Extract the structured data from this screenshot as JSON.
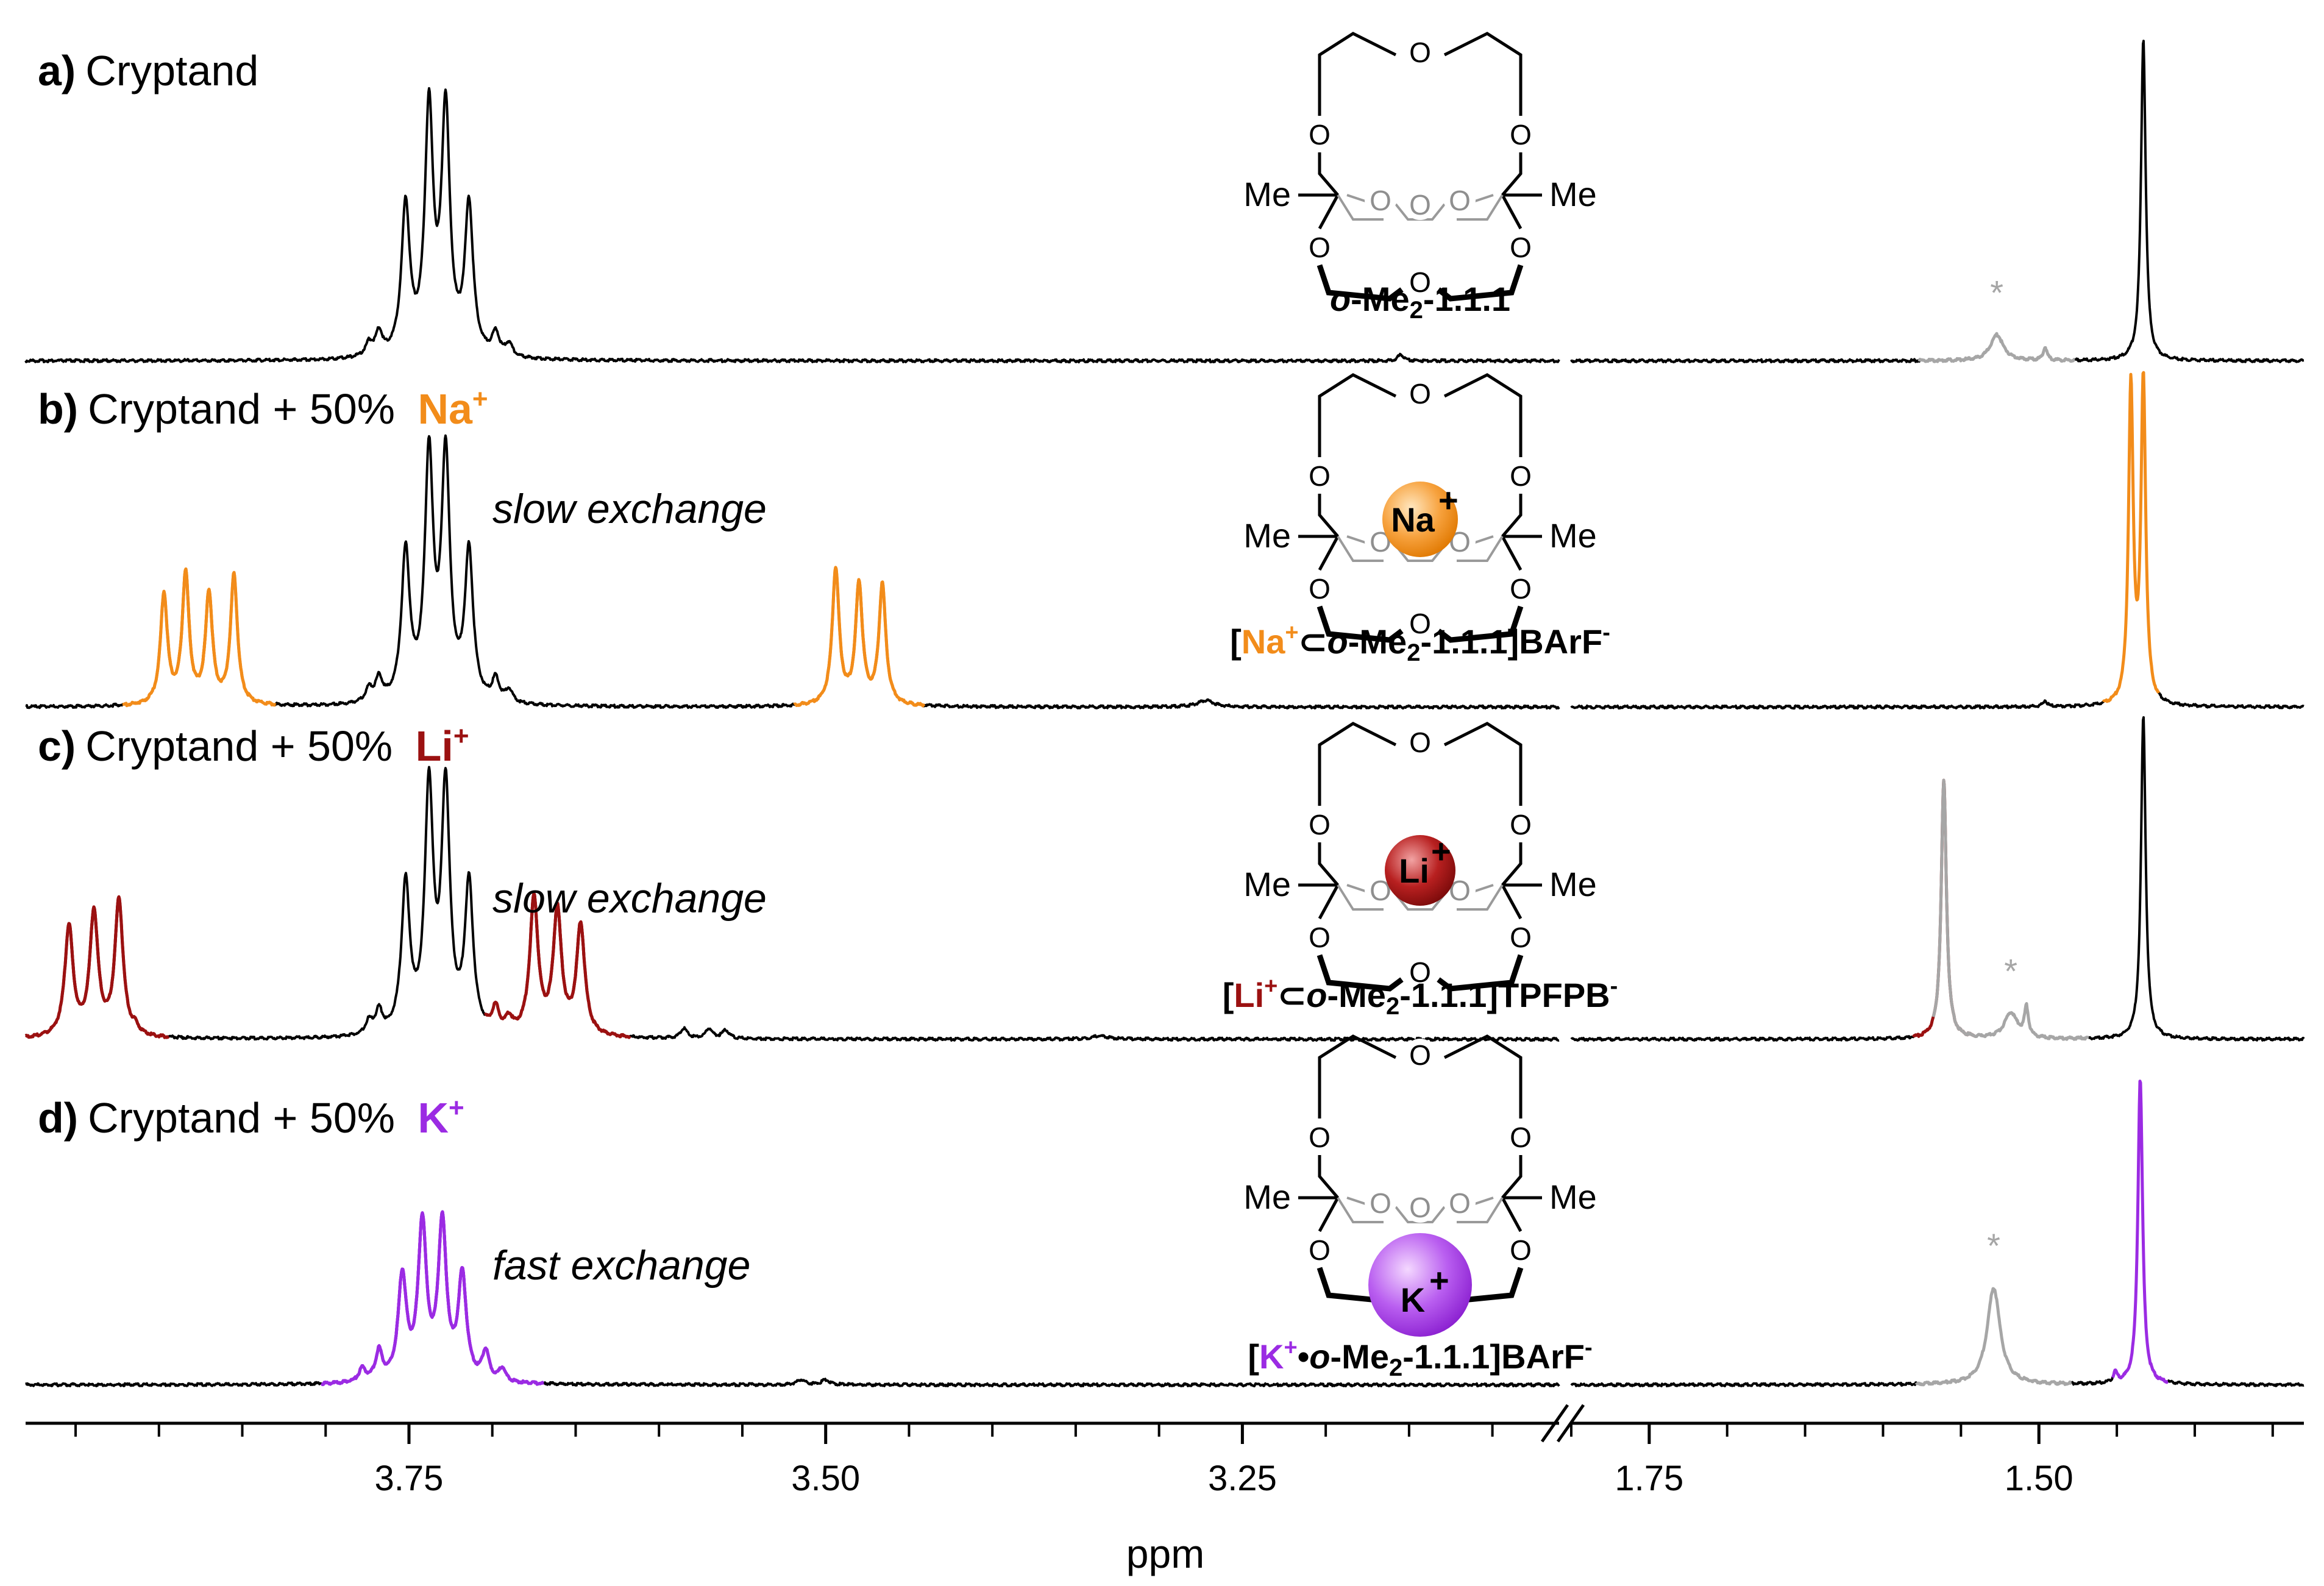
{
  "colors": {
    "black": "#000000",
    "sodium": "#f28c1a",
    "lithium": "#9b1111",
    "potassium": "#9b2be3",
    "impurity": "#a6a6a6"
  },
  "chart_data": {
    "type": "line",
    "title": "",
    "xlabel": "ppm",
    "ylabel": "",
    "x_reversed": true,
    "broken_axis": true,
    "xlim_left_segment": [
      3.98,
      3.06
    ],
    "xlim_right_segment": [
      1.8,
      1.33
    ],
    "x_ticks_left": [
      3.75,
      3.5,
      3.25
    ],
    "x_ticks_right": [
      1.75,
      1.5
    ],
    "x_tick_labels": [
      "3.75",
      "3.50",
      "3.25",
      "1.75",
      "1.50"
    ],
    "series": [
      {
        "name": "a) Cryptand",
        "peaks": [
          {
            "ppm": 3.774,
            "height": 0.04,
            "width": 0.0025,
            "color": "black"
          },
          {
            "ppm": 3.768,
            "height": 0.07,
            "width": 0.0025,
            "color": "black"
          },
          {
            "ppm": 3.752,
            "height": 0.46,
            "width": 0.003,
            "color": "black"
          },
          {
            "ppm": 3.738,
            "height": 0.75,
            "width": 0.003,
            "color": "black"
          },
          {
            "ppm": 3.728,
            "height": 0.75,
            "width": 0.003,
            "color": "black"
          },
          {
            "ppm": 3.714,
            "height": 0.46,
            "width": 0.003,
            "color": "black"
          },
          {
            "ppm": 3.698,
            "height": 0.07,
            "width": 0.0025,
            "color": "black"
          },
          {
            "ppm": 3.69,
            "height": 0.04,
            "width": 0.0025,
            "color": "black"
          },
          {
            "ppm": 3.155,
            "height": 0.02,
            "width": 0.002,
            "color": "black"
          },
          {
            "ppm": 1.527,
            "height": 0.08,
            "width": 0.005,
            "color": "impurity"
          },
          {
            "ppm": 1.496,
            "height": 0.04,
            "width": 0.0015,
            "color": "black"
          },
          {
            "ppm": 1.433,
            "height": 1.0,
            "width": 0.0018,
            "color": "black"
          }
        ]
      },
      {
        "name": "b) Cryptand + 50% Na+",
        "peaks": [
          {
            "ppm": 3.897,
            "height": 0.34,
            "width": 0.0025,
            "color": "sodium"
          },
          {
            "ppm": 3.884,
            "height": 0.4,
            "width": 0.0025,
            "color": "sodium"
          },
          {
            "ppm": 3.87,
            "height": 0.34,
            "width": 0.0025,
            "color": "sodium"
          },
          {
            "ppm": 3.855,
            "height": 0.4,
            "width": 0.0025,
            "color": "sodium"
          },
          {
            "ppm": 3.774,
            "height": 0.04,
            "width": 0.0025,
            "color": "black"
          },
          {
            "ppm": 3.768,
            "height": 0.07,
            "width": 0.0025,
            "color": "black"
          },
          {
            "ppm": 3.752,
            "height": 0.46,
            "width": 0.003,
            "color": "black"
          },
          {
            "ppm": 3.738,
            "height": 0.75,
            "width": 0.003,
            "color": "black"
          },
          {
            "ppm": 3.728,
            "height": 0.75,
            "width": 0.003,
            "color": "black"
          },
          {
            "ppm": 3.714,
            "height": 0.46,
            "width": 0.003,
            "color": "black"
          },
          {
            "ppm": 3.698,
            "height": 0.07,
            "width": 0.0025,
            "color": "black"
          },
          {
            "ppm": 3.69,
            "height": 0.04,
            "width": 0.0025,
            "color": "black"
          },
          {
            "ppm": 3.494,
            "height": 0.42,
            "width": 0.0025,
            "color": "sodium"
          },
          {
            "ppm": 3.48,
            "height": 0.37,
            "width": 0.0025,
            "color": "sodium"
          },
          {
            "ppm": 3.466,
            "height": 0.37,
            "width": 0.0025,
            "color": "sodium"
          },
          {
            "ppm": 3.272,
            "height": 0.02,
            "width": 0.006,
            "color": "black"
          },
          {
            "ppm": 1.496,
            "height": 0.02,
            "width": 0.0015,
            "color": "black"
          },
          {
            "ppm": 1.441,
            "height": 0.98,
            "width": 0.0018,
            "color": "sodium"
          },
          {
            "ppm": 1.433,
            "height": 1.0,
            "width": 0.0018,
            "color": "black"
          }
        ]
      },
      {
        "name": "c) Cryptand + 50% Li+",
        "peaks": [
          {
            "ppm": 3.954,
            "height": 0.34,
            "width": 0.003,
            "color": "lithium"
          },
          {
            "ppm": 3.939,
            "height": 0.38,
            "width": 0.003,
            "color": "lithium"
          },
          {
            "ppm": 3.924,
            "height": 0.42,
            "width": 0.003,
            "color": "lithium"
          },
          {
            "ppm": 3.914,
            "height": 0.02,
            "width": 0.002,
            "color": "black"
          },
          {
            "ppm": 3.774,
            "height": 0.04,
            "width": 0.0025,
            "color": "black"
          },
          {
            "ppm": 3.768,
            "height": 0.07,
            "width": 0.0025,
            "color": "black"
          },
          {
            "ppm": 3.752,
            "height": 0.46,
            "width": 0.003,
            "color": "black"
          },
          {
            "ppm": 3.738,
            "height": 0.75,
            "width": 0.003,
            "color": "black"
          },
          {
            "ppm": 3.728,
            "height": 0.75,
            "width": 0.003,
            "color": "black"
          },
          {
            "ppm": 3.714,
            "height": 0.46,
            "width": 0.003,
            "color": "black"
          },
          {
            "ppm": 3.698,
            "height": 0.07,
            "width": 0.0025,
            "color": "black"
          },
          {
            "ppm": 3.69,
            "height": 0.04,
            "width": 0.0025,
            "color": "black"
          },
          {
            "ppm": 3.675,
            "height": 0.42,
            "width": 0.003,
            "color": "lithium"
          },
          {
            "ppm": 3.661,
            "height": 0.38,
            "width": 0.003,
            "color": "lithium"
          },
          {
            "ppm": 3.647,
            "height": 0.34,
            "width": 0.003,
            "color": "lithium"
          },
          {
            "ppm": 3.585,
            "height": 0.03,
            "width": 0.0025,
            "color": "black"
          },
          {
            "ppm": 3.57,
            "height": 0.03,
            "width": 0.0025,
            "color": "black"
          },
          {
            "ppm": 3.56,
            "height": 0.025,
            "width": 0.0025,
            "color": "black"
          },
          {
            "ppm": 3.335,
            "height": 0.01,
            "width": 0.006,
            "color": "black"
          },
          {
            "ppm": 1.561,
            "height": 0.8,
            "width": 0.002,
            "color": "lithium"
          },
          {
            "ppm": 1.518,
            "height": 0.08,
            "width": 0.005,
            "color": "impurity"
          },
          {
            "ppm": 1.508,
            "height": 0.09,
            "width": 0.0015,
            "color": "black"
          },
          {
            "ppm": 1.433,
            "height": 1.0,
            "width": 0.0018,
            "color": "black"
          }
        ]
      },
      {
        "name": "d) Cryptand + 50% K+",
        "peaks": [
          {
            "ppm": 3.778,
            "height": 0.04,
            "width": 0.0025,
            "color": "potassium"
          },
          {
            "ppm": 3.768,
            "height": 0.09,
            "width": 0.0025,
            "color": "potassium"
          },
          {
            "ppm": 3.754,
            "height": 0.32,
            "width": 0.003,
            "color": "potassium"
          },
          {
            "ppm": 3.742,
            "height": 0.48,
            "width": 0.003,
            "color": "potassium"
          },
          {
            "ppm": 3.73,
            "height": 0.48,
            "width": 0.003,
            "color": "potassium"
          },
          {
            "ppm": 3.718,
            "height": 0.32,
            "width": 0.003,
            "color": "potassium"
          },
          {
            "ppm": 3.704,
            "height": 0.09,
            "width": 0.0025,
            "color": "potassium"
          },
          {
            "ppm": 3.694,
            "height": 0.04,
            "width": 0.0025,
            "color": "potassium"
          },
          {
            "ppm": 3.515,
            "height": 0.015,
            "width": 0.003,
            "color": "black"
          },
          {
            "ppm": 3.5,
            "height": 0.015,
            "width": 0.003,
            "color": "black"
          },
          {
            "ppm": 1.529,
            "height": 0.3,
            "width": 0.005,
            "color": "impurity"
          },
          {
            "ppm": 1.451,
            "height": 0.03,
            "width": 0.0015,
            "color": "black"
          },
          {
            "ppm": 1.435,
            "height": 0.95,
            "width": 0.0018,
            "color": "potassium"
          }
        ]
      }
    ],
    "impurity_marker": "*",
    "annotations": {
      "slow_exchange": "slow exchange",
      "fast_exchange": "fast exchange"
    }
  },
  "panels": [
    {
      "letter": "a)",
      "text": "Cryptand",
      "ion": "",
      "charge": "",
      "note": ""
    },
    {
      "letter": "b)",
      "text": "Cryptand + 50% ",
      "ion": "Na",
      "charge": "+",
      "note": "slow exchange"
    },
    {
      "letter": "c)",
      "text": "Cryptand + 50% ",
      "ion": "Li",
      "charge": "+",
      "note": "slow exchange"
    },
    {
      "letter": "d)",
      "text": "Cryptand + 50% ",
      "ion": "K",
      "charge": "+",
      "note": "fast exchange"
    }
  ],
  "molecules": {
    "substituent": "Me",
    "oxygen": "O",
    "labels": [
      {
        "pre": "",
        "ion": "",
        "charge": "",
        "op": "",
        "name_o": "o",
        "name_rest": "-Me",
        "sub": "2",
        "tail": "-1.1.1",
        "counter": "",
        "counter_charge": ""
      },
      {
        "pre": "[",
        "ion": "Na",
        "charge": "+",
        "op": "⊂",
        "name_o": "o",
        "name_rest": "-Me",
        "sub": "2",
        "tail": "-1.1.1]",
        "counter": "BArF",
        "counter_charge": "-"
      },
      {
        "pre": "[",
        "ion": "Li",
        "charge": "+",
        "op": "⊂",
        "name_o": "o",
        "name_rest": "-Me",
        "sub": "2",
        "tail": "-1.1.1]",
        "counter": "TPFPB",
        "counter_charge": "-"
      },
      {
        "pre": "[",
        "ion": "K",
        "charge": "+",
        "op": "•",
        "name_o": "o",
        "name_rest": "-Me",
        "sub": "2",
        "tail": "-1.1.1]",
        "counter": "BArF",
        "counter_charge": "-"
      }
    ],
    "ion_balls": [
      {
        "symbol": "Na",
        "charge": "+"
      },
      {
        "symbol": "Li",
        "charge": "+"
      },
      {
        "symbol": "K",
        "charge": "+"
      }
    ]
  }
}
